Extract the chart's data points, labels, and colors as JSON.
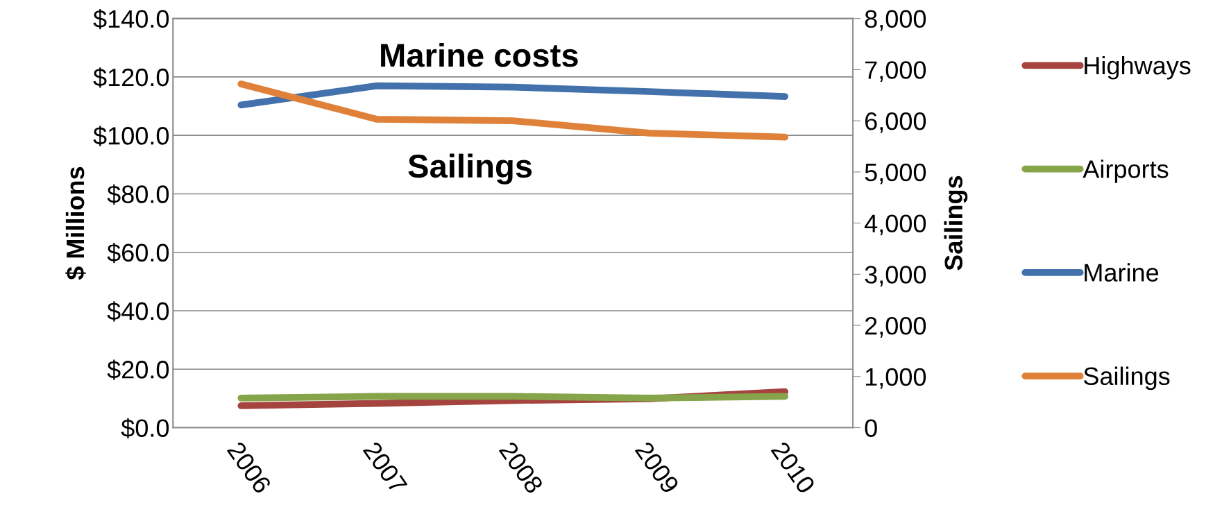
{
  "chart_data": {
    "type": "line",
    "categories": [
      "2006",
      "2007",
      "2008",
      "2009",
      "2010"
    ],
    "ylabel": "$ Millions",
    "y2label": "Sailings",
    "ylim": [
      0,
      140
    ],
    "yticks": [
      {
        "value": 0,
        "label": "$0.0"
      },
      {
        "value": 20,
        "label": "$20.0"
      },
      {
        "value": 40,
        "label": "$40.0"
      },
      {
        "value": 60,
        "label": "$60.0"
      },
      {
        "value": 80,
        "label": "$80.0"
      },
      {
        "value": 100,
        "label": "$100.0"
      },
      {
        "value": 120,
        "label": "$120.0"
      },
      {
        "value": 140,
        "label": "$140.0"
      }
    ],
    "y2lim": [
      0,
      8000
    ],
    "y2ticks": [
      0,
      {
        "value": 1000,
        "label": "1,000"
      },
      {
        "value": 2000,
        "label": "2,000"
      },
      {
        "value": 3000,
        "label": "3,000"
      },
      {
        "value": 4000,
        "label": "4,000"
      },
      {
        "value": 5000,
        "label": "5,000"
      },
      {
        "value": 6000,
        "label": "6,000"
      },
      {
        "value": 7000,
        "label": "7,000"
      },
      {
        "value": 8000,
        "label": "8,000"
      }
    ],
    "grid": "y",
    "legend": "right",
    "marker": "none",
    "line_style": "solid",
    "series": [
      {
        "name": "Highways",
        "color": "#a5443f",
        "values": [
          7.5,
          8.3,
          9.3,
          9.9,
          12.3
        ]
      },
      {
        "name": "Airports",
        "color": "#86a44a",
        "values": [
          10.1,
          10.7,
          10.7,
          10.1,
          10.7
        ]
      },
      {
        "name": "Marine",
        "color": "#4271ab",
        "values": [
          110.4,
          117,
          116.5,
          115,
          113.3
        ]
      },
      {
        "name": "Sailings",
        "color": "#df8139",
        "axis": "y2",
        "values": [
          6720,
          6030,
          6000,
          5760,
          5680
        ]
      }
    ],
    "annotations": [
      "Marine costs",
      "Sailings"
    ]
  }
}
